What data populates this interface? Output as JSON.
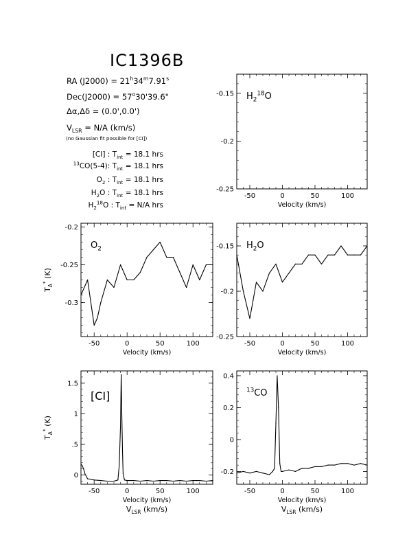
{
  "header": {
    "title": "IC1396B",
    "info_lines": [
      {
        "parts": [
          {
            "t": "RA (J2000)  =  21"
          },
          {
            "t": "h",
            "s": "sup"
          },
          {
            "t": "34"
          },
          {
            "t": "m",
            "s": "sup"
          },
          {
            "t": "7.91"
          },
          {
            "t": "s",
            "s": "sup"
          }
        ]
      },
      {
        "parts": [
          {
            "t": "Dec(J2000)  =  57"
          },
          {
            "t": "o",
            "s": "sup"
          },
          {
            "t": "30'39.6\""
          }
        ]
      },
      {
        "parts": [
          {
            "t": "Δα,Δδ  =  (0.0',0.0')"
          }
        ]
      },
      {
        "parts": [
          {
            "t": "V"
          },
          {
            "t": "LSR",
            "s": "sub"
          },
          {
            "t": "  = N/A  (km/s)"
          }
        ]
      }
    ],
    "note": "(no Gaussian fit possible for [CI])",
    "tint_lines": [
      {
        "parts": [
          {
            "t": "[CI] : T"
          },
          {
            "t": "int",
            "s": "sub"
          },
          {
            "t": " = 18.1 hrs"
          }
        ]
      },
      {
        "parts": [
          {
            "t": "13",
            "s": "sup"
          },
          {
            "t": "CO(5-4): T"
          },
          {
            "t": "int",
            "s": "sub"
          },
          {
            "t": " = 18.1 hrs"
          }
        ]
      },
      {
        "parts": [
          {
            "t": "O"
          },
          {
            "t": "2",
            "s": "sub"
          },
          {
            "t": " : T"
          },
          {
            "t": "int",
            "s": "sub"
          },
          {
            "t": " = 18.1 hrs"
          }
        ]
      },
      {
        "parts": [
          {
            "t": "H"
          },
          {
            "t": "2",
            "s": "sub"
          },
          {
            "t": "O : T"
          },
          {
            "t": "int",
            "s": "sub"
          },
          {
            "t": " = 18.1 hrs"
          }
        ]
      },
      {
        "parts": [
          {
            "t": "H"
          },
          {
            "t": "2",
            "s": "sub"
          },
          {
            "t": "18",
            "s": "sup"
          },
          {
            "t": "O : T"
          },
          {
            "t": "int",
            "s": "sub"
          },
          {
            "t": " = N/A hrs"
          }
        ]
      }
    ]
  },
  "chart_data": [
    {
      "id": "h218o",
      "type": "line",
      "label": [
        {
          "t": "H"
        },
        {
          "t": "2",
          "s": "sub"
        },
        {
          "t": "18",
          "s": "sup"
        },
        {
          "t": "O"
        }
      ],
      "xlabel": "Velocity (km/s)",
      "xlim": [
        -70,
        130
      ],
      "ylim": [
        -0.25,
        -0.13
      ],
      "xticks": [
        -50,
        0,
        50,
        100
      ],
      "yticks": [
        -0.25,
        -0.2,
        -0.15
      ],
      "ytick_labels": [
        "-0.25",
        "-0.2",
        "-0.15"
      ],
      "x": [],
      "y": []
    },
    {
      "id": "o2",
      "type": "line",
      "label": [
        {
          "t": "O"
        },
        {
          "t": "2",
          "s": "sub"
        }
      ],
      "xlabel": "Velocity (km/s)",
      "ylabel": [
        {
          "t": "T"
        },
        {
          "t": "A",
          "s": "sub"
        },
        {
          "t": "*",
          "s": "sup"
        },
        {
          "t": " (K)"
        }
      ],
      "xlim": [
        -70,
        130
      ],
      "ylim": [
        -0.345,
        -0.195
      ],
      "xticks": [
        -50,
        0,
        50,
        100
      ],
      "yticks": [
        -0.3,
        -0.25,
        -0.2
      ],
      "ytick_labels": [
        "-0.3",
        "-0.25",
        "-0.2"
      ],
      "x": [
        -70,
        -60,
        -50,
        -45,
        -40,
        -30,
        -20,
        -10,
        0,
        10,
        20,
        30,
        40,
        50,
        60,
        70,
        80,
        90,
        100,
        110,
        120,
        130
      ],
      "y": [
        -0.29,
        -0.27,
        -0.33,
        -0.32,
        -0.3,
        -0.27,
        -0.28,
        -0.25,
        -0.27,
        -0.27,
        -0.26,
        -0.24,
        -0.23,
        -0.22,
        -0.24,
        -0.24,
        -0.26,
        -0.28,
        -0.25,
        -0.27,
        -0.25,
        -0.25
      ]
    },
    {
      "id": "h2o",
      "type": "line",
      "label": [
        {
          "t": "H"
        },
        {
          "t": "2",
          "s": "sub"
        },
        {
          "t": "O"
        }
      ],
      "xlabel": "Velocity (km/s)",
      "xlim": [
        -70,
        130
      ],
      "ylim": [
        -0.25,
        -0.125
      ],
      "xticks": [
        -50,
        0,
        50,
        100
      ],
      "yticks": [
        -0.25,
        -0.2,
        -0.15
      ],
      "ytick_labels": [
        "-0.25",
        "-0.2",
        "-0.15"
      ],
      "x": [
        -70,
        -60,
        -50,
        -45,
        -40,
        -30,
        -20,
        -10,
        0,
        10,
        20,
        30,
        40,
        50,
        60,
        70,
        80,
        90,
        100,
        110,
        120,
        130
      ],
      "y": [
        -0.16,
        -0.2,
        -0.23,
        -0.21,
        -0.19,
        -0.2,
        -0.18,
        -0.17,
        -0.19,
        -0.18,
        -0.17,
        -0.17,
        -0.16,
        -0.16,
        -0.17,
        -0.16,
        -0.16,
        -0.15,
        -0.16,
        -0.16,
        -0.16,
        -0.15
      ]
    },
    {
      "id": "ci",
      "type": "line",
      "label": [
        {
          "t": "[CI]"
        }
      ],
      "xlabel": "Velocity (km/s)",
      "ylabel": [
        {
          "t": "T"
        },
        {
          "t": "A",
          "s": "sub"
        },
        {
          "t": "*",
          "s": "sup"
        },
        {
          "t": " (K)"
        }
      ],
      "xlabel2": [
        {
          "t": "V"
        },
        {
          "t": "LSR",
          "s": "sub"
        },
        {
          "t": " (km/s)"
        }
      ],
      "xlim": [
        -70,
        130
      ],
      "ylim": [
        -0.15,
        1.7
      ],
      "xticks": [
        -50,
        0,
        50,
        100
      ],
      "yticks": [
        0,
        0.5,
        1,
        1.5
      ],
      "ytick_labels": [
        "0",
        ".5",
        "1",
        "1.5"
      ],
      "x": [
        -70,
        -68,
        -66,
        -64,
        -60,
        -50,
        -40,
        -30,
        -20,
        -14,
        -12,
        -10,
        -9,
        -8,
        -7,
        -6,
        -4,
        0,
        10,
        20,
        30,
        40,
        50,
        60,
        70,
        80,
        90,
        100,
        110,
        120,
        130
      ],
      "y": [
        0.18,
        0.15,
        0.1,
        0.02,
        -0.06,
        -0.08,
        -0.09,
        -0.1,
        -0.1,
        -0.08,
        0.15,
        0.8,
        1.64,
        1.0,
        0.4,
        0.02,
        -0.08,
        -0.09,
        -0.09,
        -0.1,
        -0.09,
        -0.1,
        -0.09,
        -0.09,
        -0.1,
        -0.09,
        -0.1,
        -0.09,
        -0.09,
        -0.1,
        -0.09
      ]
    },
    {
      "id": "13co",
      "type": "line",
      "label": [
        {
          "t": "13",
          "s": "sup"
        },
        {
          "t": "CO"
        }
      ],
      "xlabel": "Velocity (km/s)",
      "xlabel2": [
        {
          "t": "V"
        },
        {
          "t": "LSR",
          "s": "sub"
        },
        {
          "t": " (km/s)"
        }
      ],
      "xlim": [
        -70,
        130
      ],
      "ylim": [
        -0.28,
        0.43
      ],
      "xticks": [
        -50,
        0,
        50,
        100
      ],
      "yticks": [
        -0.2,
        0,
        0.2,
        0.4
      ],
      "ytick_labels": [
        "-0.2",
        "0",
        "0.2",
        "0.4"
      ],
      "x": [
        -70,
        -60,
        -50,
        -40,
        -30,
        -20,
        -15,
        -12,
        -10,
        -8,
        -6,
        -4,
        -2,
        0,
        10,
        20,
        30,
        40,
        50,
        60,
        70,
        80,
        90,
        100,
        110,
        120,
        130
      ],
      "y": [
        -0.21,
        -0.2,
        -0.21,
        -0.2,
        -0.21,
        -0.22,
        -0.2,
        -0.18,
        0.1,
        0.4,
        0.2,
        -0.15,
        -0.2,
        -0.2,
        -0.19,
        -0.2,
        -0.18,
        -0.18,
        -0.17,
        -0.17,
        -0.16,
        -0.16,
        -0.15,
        -0.15,
        -0.16,
        -0.15,
        -0.16
      ]
    }
  ]
}
